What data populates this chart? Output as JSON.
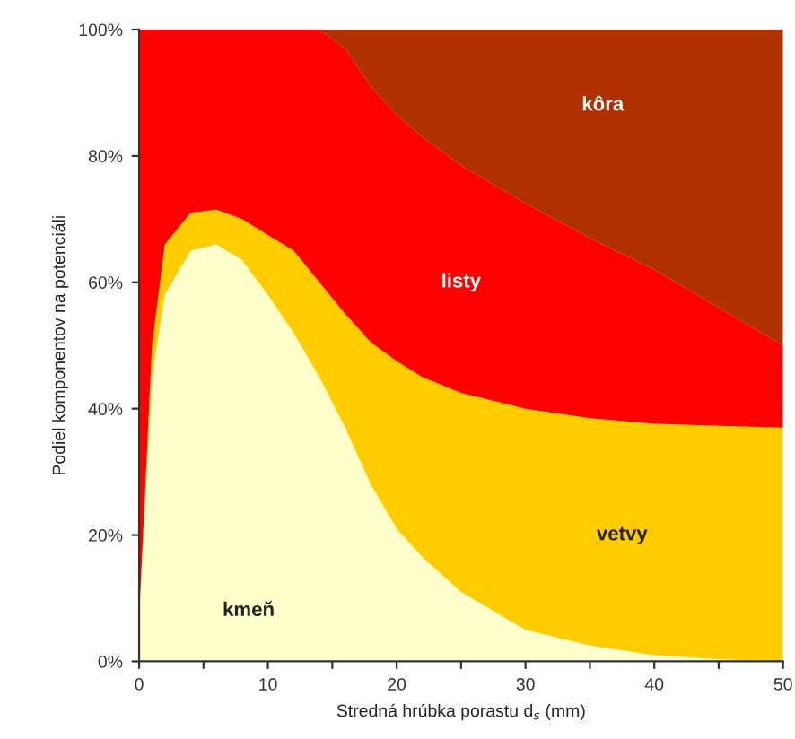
{
  "chart_data": {
    "type": "area",
    "stacked": true,
    "xlabel": "Stredná hrúbka porastu d$_{s}$ (mm)",
    "ylabel": "Podiel komponentov na potenciáli",
    "x": [
      0,
      1,
      2,
      4,
      6,
      8,
      10,
      12,
      14,
      16,
      18,
      20,
      22,
      25,
      30,
      35,
      40,
      45,
      50
    ],
    "series": [
      {
        "name": "kmeň",
        "color": "#ffffcc",
        "values": [
          7,
          45,
          58,
          65,
          66,
          63.5,
          58,
          52,
          45,
          37,
          28,
          21,
          16.5,
          11,
          5,
          2.5,
          1,
          0.3,
          0
        ]
      },
      {
        "name": "vetvy",
        "color": "#ffcc00",
        "values": [
          0,
          5,
          8,
          6,
          5.5,
          6.5,
          9.5,
          13,
          15,
          18,
          22.5,
          26.5,
          28.5,
          31.5,
          35,
          36,
          36.6,
          37,
          37
        ]
      },
      {
        "name": "listy",
        "color": "#ff0000",
        "values": [
          93,
          50,
          34,
          29,
          28.5,
          30,
          32.5,
          35,
          40,
          42,
          40.5,
          39,
          38,
          36,
          32.5,
          28.5,
          24.4,
          18.7,
          13
        ]
      },
      {
        "name": "kôra",
        "color": "#b03000",
        "values": [
          0,
          0,
          0,
          0,
          0,
          0,
          0,
          0,
          0,
          3,
          9,
          13.5,
          17,
          21.5,
          27.5,
          33,
          38,
          44,
          50
        ]
      }
    ],
    "xlim": [
      0,
      50
    ],
    "ylim": [
      0,
      100
    ],
    "xticks": [
      0,
      {
        "value": 5,
        "label": null
      },
      10,
      {
        "value": 15,
        "label": null
      },
      20,
      {
        "value": 25,
        "label": null
      },
      30,
      {
        "value": 35,
        "label": null
      },
      40,
      {
        "value": 45,
        "label": null
      },
      50
    ],
    "yticks": [
      {
        "value": 0,
        "label": "0%"
      },
      {
        "value": 20,
        "label": "20%"
      },
      {
        "value": 40,
        "label": "40%"
      },
      {
        "value": 60,
        "label": "60%"
      },
      {
        "value": 80,
        "label": "80%"
      },
      {
        "value": 100,
        "label": "100%"
      }
    ],
    "grid": false,
    "legend": false
  }
}
